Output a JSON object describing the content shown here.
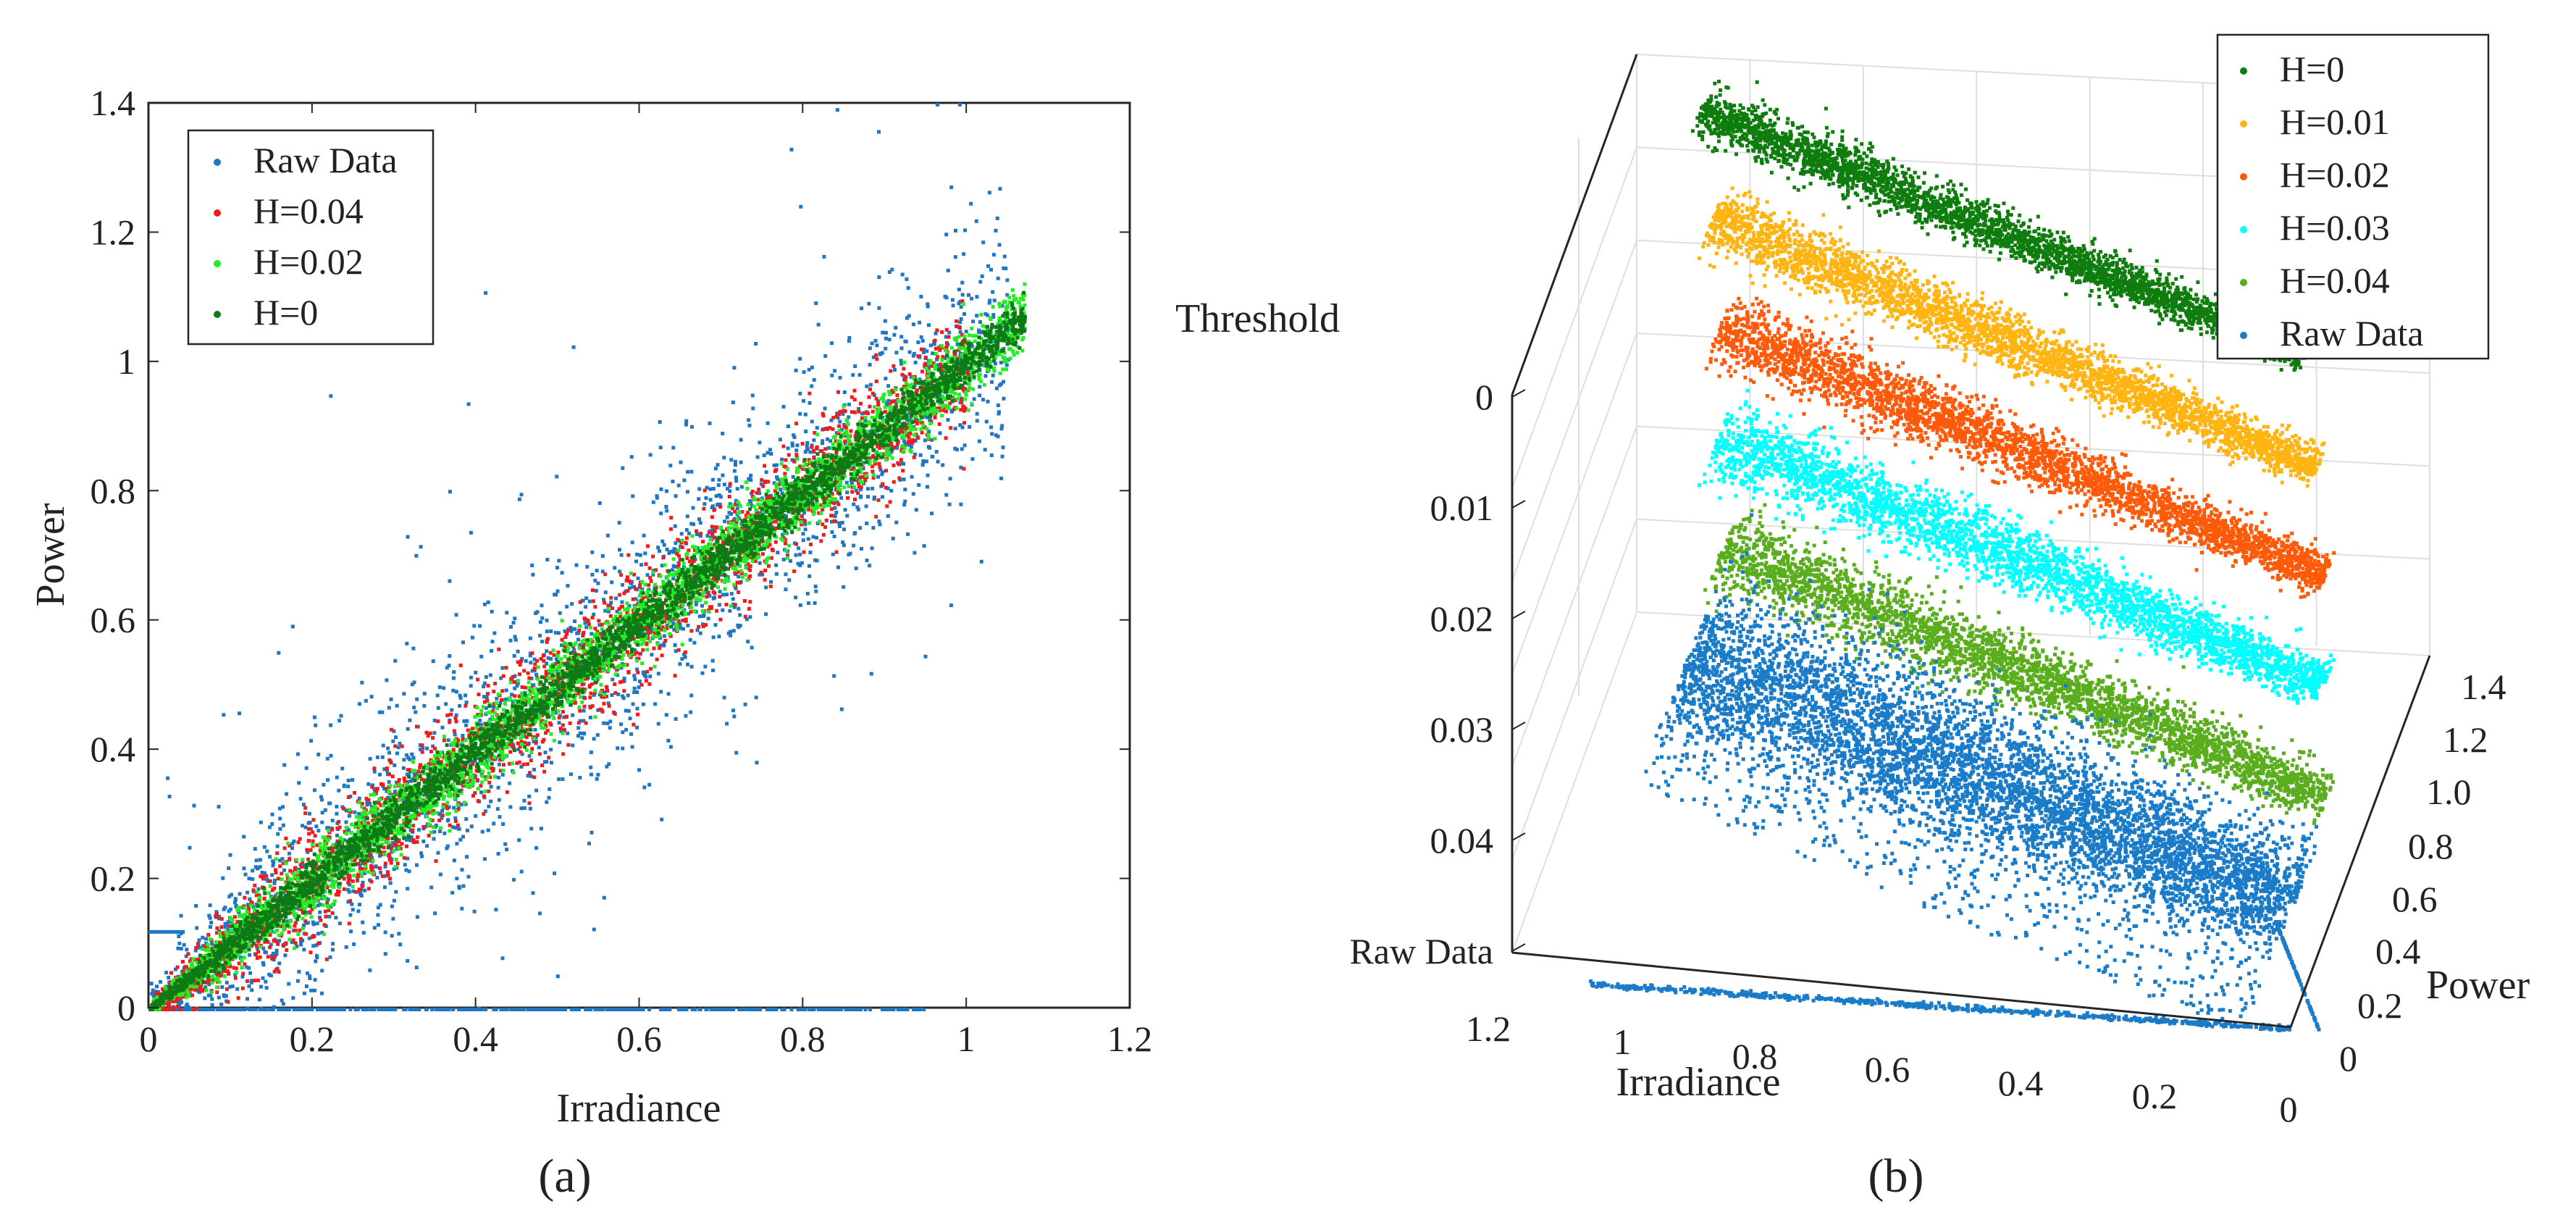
{
  "chart_data": [
    {
      "panel": "(a)",
      "type": "scatter",
      "caption": "(a)",
      "xlabel": "Irradiance",
      "ylabel": "Power",
      "xlim": [
        0,
        1.2
      ],
      "ylim": [
        0,
        1.4
      ],
      "xticks": [
        0,
        0.2,
        0.4,
        0.6,
        0.8,
        1,
        1.2
      ],
      "xtick_labels": [
        "0",
        "0.2",
        "0.4",
        "0.6",
        "0.8",
        "1",
        "1.2"
      ],
      "yticks": [
        0,
        0.2,
        0.4,
        0.6,
        0.8,
        1,
        1.2,
        1.4
      ],
      "ytick_labels": [
        "0",
        "0.2",
        "0.4",
        "0.6",
        "0.8",
        "1",
        "1.2",
        "1.4"
      ],
      "legend_position": "top-left",
      "series": [
        {
          "name": "Raw Data",
          "color": "#1f77c4",
          "relation": "power ≈ irradiance",
          "spread_sd": 0.09,
          "irradiance_range": [
            0,
            1.05
          ],
          "outlier_lines": [
            {
              "power": 0,
              "irradiance_range": [
                0,
                0.95
              ]
            },
            {
              "power": 0.12,
              "irradiance_range": [
                0,
                0.04
              ]
            }
          ]
        },
        {
          "name": "H=0.04",
          "color": "#ee1c1c",
          "relation": "power ≈ irradiance",
          "spread_sd": 0.045,
          "irradiance_range": [
            0,
            1.0
          ]
        },
        {
          "name": "H=0.02",
          "color": "#22ee22",
          "relation": "power ≈ irradiance",
          "spread_sd": 0.028,
          "irradiance_range": [
            0,
            1.07
          ]
        },
        {
          "name": "H=0",
          "color": "#0d7a16",
          "relation": "power ≈ irradiance",
          "spread_sd": 0.016,
          "irradiance_range": [
            0,
            1.07
          ]
        }
      ]
    },
    {
      "panel": "(b)",
      "type": "scatter",
      "caption": "(b)",
      "projection": "3d",
      "xlabel": "Irradiance",
      "ylabel": "Power",
      "zlabel": "Threshold",
      "x_ticks": [
        1.2,
        1,
        0.8,
        0.6,
        0.4,
        0.2,
        0
      ],
      "x_tick_labels": [
        "1.2",
        "1",
        "0.8",
        "0.6",
        "0.4",
        "0.2",
        "0"
      ],
      "y_ticks": [
        0,
        0.2,
        0.4,
        0.6,
        0.8,
        1.0,
        1.2,
        1.4
      ],
      "y_tick_labels": [
        "0",
        "0.2",
        "0.4",
        "0.6",
        "0.8",
        "1.0",
        "1.2",
        "1.4"
      ],
      "z_tick_labels": [
        "0",
        "0.01",
        "0.02",
        "0.03",
        "0.04",
        "Raw Data"
      ],
      "legend_position": "top-right",
      "series": [
        {
          "name": "H=0",
          "color": "#0e7d0e",
          "threshold_level": "0",
          "spread": 0.25
        },
        {
          "name": "H=0.01",
          "color": "#ffb412",
          "threshold_level": "0.01",
          "spread": 0.4
        },
        {
          "name": "H=0.02",
          "color": "#ff5a0a",
          "threshold_level": "0.02",
          "spread": 0.45
        },
        {
          "name": "H=0.03",
          "color": "#00ffff",
          "threshold_level": "0.03",
          "spread": 0.55
        },
        {
          "name": "H=0.04",
          "color": "#5aae1e",
          "threshold_level": "0.04",
          "spread": 0.6
        },
        {
          "name": "Raw Data",
          "color": "#1a7cc8",
          "threshold_level": "Raw Data",
          "spread": 1.0
        }
      ]
    }
  ]
}
